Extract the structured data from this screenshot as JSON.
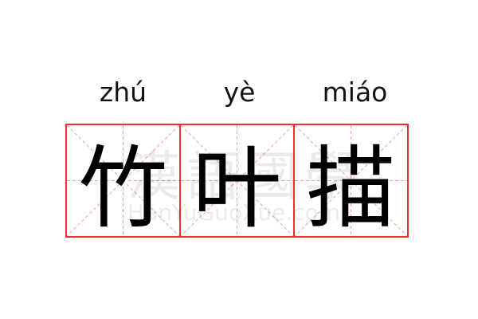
{
  "entries": [
    {
      "pinyin": "zhú",
      "char": "竹"
    },
    {
      "pinyin": "yè",
      "char": "叶"
    },
    {
      "pinyin": "miáo",
      "char": "描"
    }
  ],
  "watermark": {
    "text": "漢語國學",
    "url": "HanYuGuoXue.com"
  },
  "colors": {
    "border": "#f03030",
    "guide": "#f5a0a0"
  }
}
